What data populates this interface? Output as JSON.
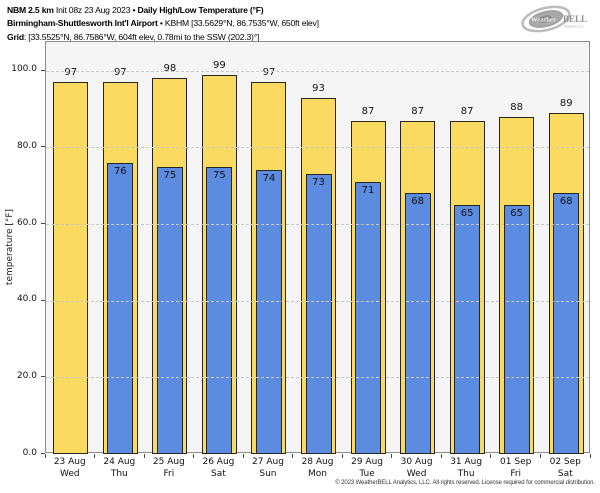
{
  "header": {
    "line1": {
      "model": "NBM 2.5 km",
      "init": " Init 08z 23 Aug 2023 ",
      "bullet": "•",
      "title": " Daily High/Low Temperature (°F)"
    },
    "line2": {
      "station": "Birmingham-Shuttlesworth Int'l Airport",
      "bullet": "•",
      "meta": " KBHM [33.5629°N, 86.7535°W, 650ft elev]"
    },
    "line3": {
      "label": "Grid",
      "meta": ": [33.5525°N, 86.7586°W, 604ft elev, 0.78mi to the SSW (202.3)°]"
    }
  },
  "logo": {
    "part1": "Weather",
    "part2": "BELL",
    "sub": "Analytics LLC"
  },
  "chart_data": {
    "type": "bar",
    "title": "Daily High/Low Temperature (°F)",
    "categories": [
      {
        "date": "23 Aug",
        "day": "Wed"
      },
      {
        "date": "24 Aug",
        "day": "Thu"
      },
      {
        "date": "25 Aug",
        "day": "Fri"
      },
      {
        "date": "26 Aug",
        "day": "Sat"
      },
      {
        "date": "27 Aug",
        "day": "Sun"
      },
      {
        "date": "28 Aug",
        "day": "Mon"
      },
      {
        "date": "29 Aug",
        "day": "Tue"
      },
      {
        "date": "30 Aug",
        "day": "Wed"
      },
      {
        "date": "31 Aug",
        "day": "Thu"
      },
      {
        "date": "01 Sep",
        "day": "Fri"
      },
      {
        "date": "02 Sep",
        "day": "Sat"
      }
    ],
    "series": [
      {
        "name": "daily-high",
        "color": "#fbda62",
        "values": [
          97,
          97,
          98,
          99,
          97,
          93,
          87,
          87,
          87,
          88,
          89
        ]
      },
      {
        "name": "daily-low",
        "color": "#5c8ce0",
        "values": [
          null,
          76,
          75,
          75,
          74,
          73,
          71,
          68,
          65,
          65,
          68
        ]
      }
    ],
    "ylabel": "temperature [°F]",
    "yticks": [
      0,
      20,
      40,
      60,
      80,
      100
    ],
    "ytick_labels": [
      "0.0",
      "20.0",
      "40.0",
      "60.0",
      "80.0",
      "100.0"
    ],
    "ylim": [
      0,
      107.5
    ],
    "grid": "dashed-horizontal",
    "legend": "none",
    "plot_background": "#f5f5f5",
    "bar_border_color": "#262626"
  },
  "footer": {
    "copyright": "© 2023 WeatherBELL Analytics, LLC. All rights reserved. License required for commercial distribution."
  }
}
